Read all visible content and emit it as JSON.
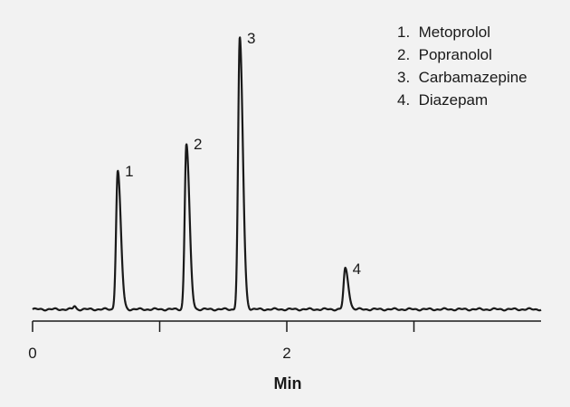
{
  "chart_data": {
    "type": "line",
    "xlabel": "Min",
    "ylabel": "",
    "xlim": [
      0,
      4
    ],
    "x_major_ticks": [
      0,
      1,
      2,
      3
    ],
    "x_tick_labels": [
      "0",
      "",
      "2",
      ""
    ],
    "legend_position": "top-right",
    "grid": false,
    "line_color": "#1a1a1a",
    "legend": [
      "1.  Metoprolol",
      "2.  Popranolol",
      "3.  Carbamazepine",
      "4.  Diazepam"
    ],
    "peaks": [
      {
        "label": "1",
        "name": "Metoprolol",
        "time": 0.67,
        "height": 0.51
      },
      {
        "label": "2",
        "name": "Popranolol",
        "time": 1.21,
        "height": 0.61
      },
      {
        "label": "3",
        "name": "Carbamazepine",
        "time": 1.63,
        "height": 1.0
      },
      {
        "label": "4",
        "name": "Diazepam",
        "time": 2.46,
        "height": 0.15
      }
    ]
  }
}
